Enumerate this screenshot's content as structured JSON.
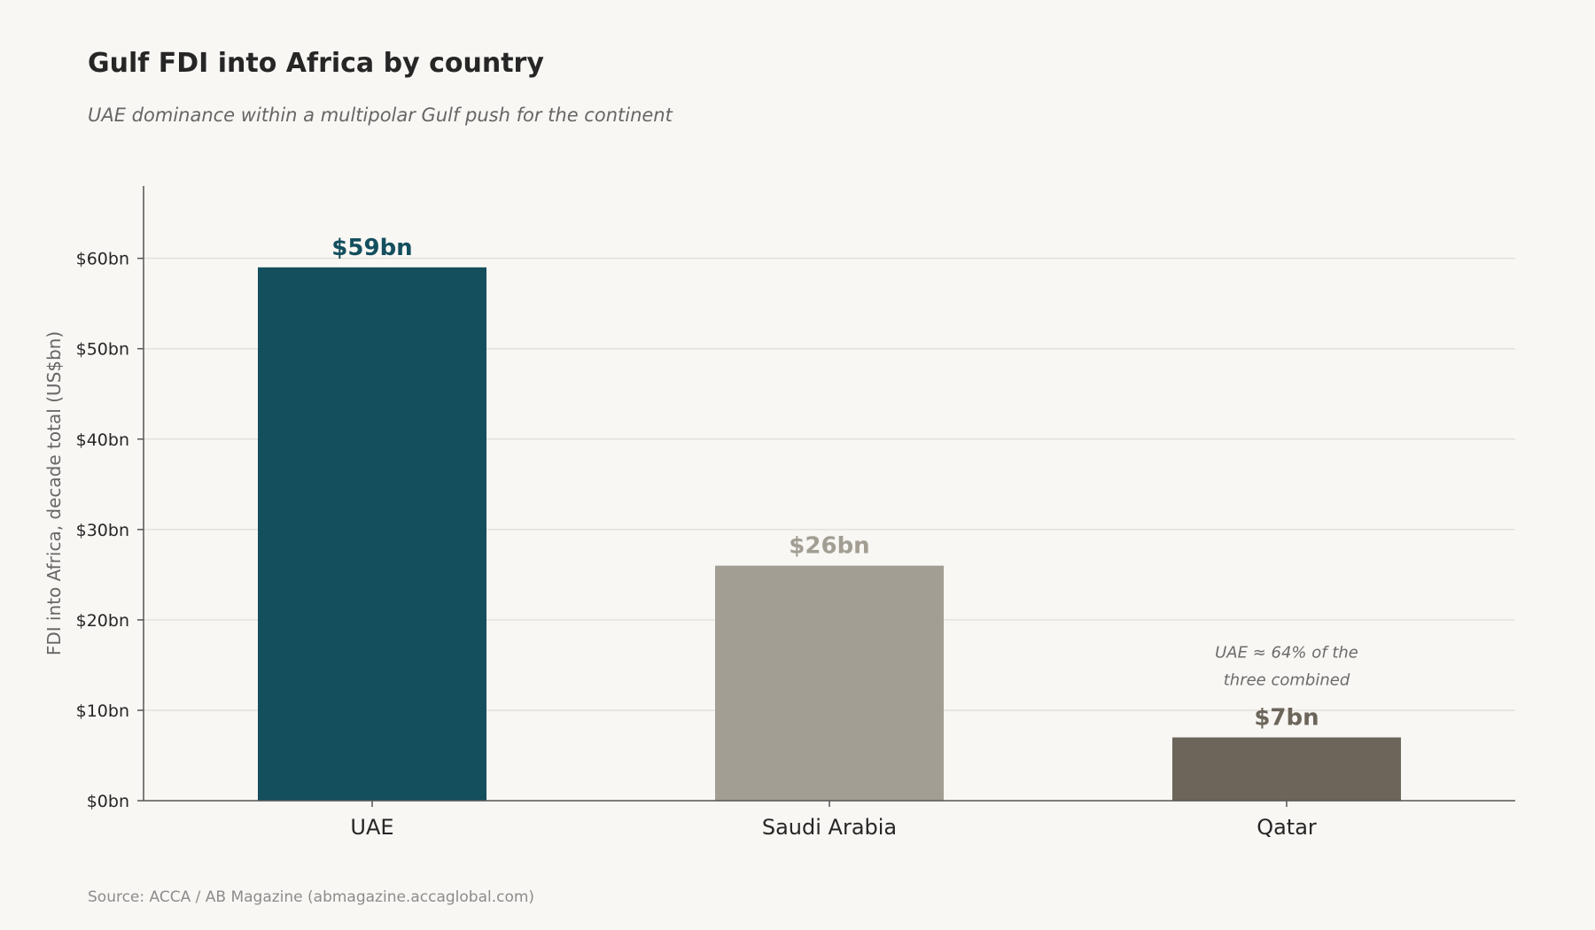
{
  "chart_data": {
    "type": "bar",
    "title": "Gulf FDI into Africa by country",
    "subtitle": "UAE dominance within a multipolar Gulf push for the continent",
    "xlabel": "",
    "ylabel": "FDI into Africa, decade total (US$bn)",
    "categories": [
      "UAE",
      "Saudi Arabia",
      "Qatar"
    ],
    "values": [
      59,
      26,
      7
    ],
    "value_labels": [
      "$59bn",
      "$26bn",
      "$7bn"
    ],
    "colors": [
      "#144f5e",
      "#a29e93",
      "#6c655a"
    ],
    "ylim": [
      0,
      68
    ],
    "yticks": [
      0,
      10,
      20,
      30,
      40,
      50,
      60
    ],
    "ytick_labels": [
      "$0bn",
      "$10bn",
      "$20bn",
      "$30bn",
      "$40bn",
      "$50bn",
      "$60bn"
    ],
    "grid": true,
    "annotation": {
      "lines": [
        "UAE ≈ 64% of the",
        "three combined"
      ],
      "category": "Qatar"
    },
    "source": "Source: ACCA / AB Magazine (abmagazine.accaglobal.com)"
  }
}
